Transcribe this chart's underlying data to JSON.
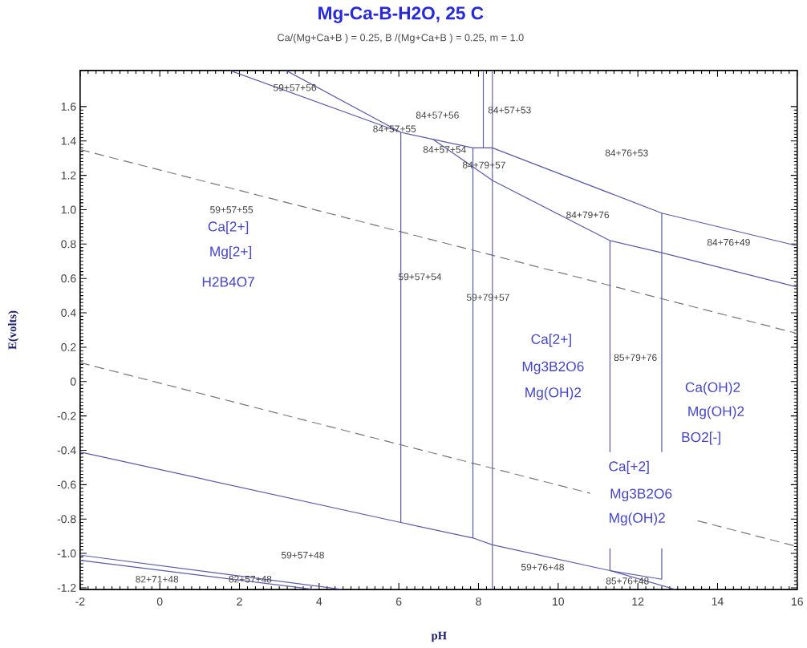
{
  "chart_data": {
    "type": "line",
    "title": "Mg-Ca-B-H2O, 25 C",
    "subtitle": "Ca/(Mg+Ca+B ) = 0.25,  B /(Mg+Ca+B ) = 0.25, m = 1.0",
    "xlabel": "pH",
    "ylabel": "E(volts)",
    "xlim": [
      -2,
      16
    ],
    "ylim": [
      -1.21,
      1.81
    ],
    "xticks": [
      -2,
      0,
      2,
      4,
      6,
      8,
      10,
      12,
      14,
      16
    ],
    "yticks": [
      {
        "value": -1.2,
        "label": "-1.2"
      },
      {
        "value": -1,
        "label": "-1.0"
      },
      -0.8,
      -0.6,
      -0.4,
      -0.2,
      0,
      0.2,
      0.4,
      0.6,
      0.8,
      {
        "value": 1,
        "label": "1.0"
      },
      1.2,
      1.4,
      1.6
    ],
    "grid": false,
    "marker": "none",
    "series": [
      {
        "color": "#777777",
        "line_style": "dashed",
        "x": [
          -2,
          16
        ],
        "values": [
          1.35,
          0.28
        ]
      },
      {
        "color": "#777777",
        "line_style": "dashed",
        "x": [
          -2,
          10.8
        ],
        "values": [
          0.11,
          -0.65
        ]
      },
      {
        "color": "#777777",
        "line_style": "dashed",
        "x": [
          13.5,
          16
        ],
        "values": [
          -0.81,
          -0.96
        ]
      },
      {
        "color": "#5a5aa8",
        "line_style": "solid",
        "x": [
          -2,
          6.05,
          7.86,
          8.35,
          11.3,
          12.95
        ],
        "values": [
          -0.41,
          -0.82,
          -0.91,
          -0.95,
          -1.1,
          -1.21
        ]
      },
      {
        "color": "#5a5aa8",
        "line_style": "solid",
        "x": [
          -2,
          4.6
        ],
        "values": [
          -1.01,
          -1.21
        ]
      },
      {
        "color": "#5a5aa8",
        "line_style": "solid",
        "x": [
          -2,
          3.9
        ],
        "values": [
          -1.04,
          -1.21
        ]
      },
      {
        "color": "#5a5aa8",
        "line_style": "solid",
        "x": [
          1.76,
          6.05,
          6.85,
          7.86,
          8.35,
          12.6,
          16
        ],
        "values": [
          1.81,
          1.45,
          1.41,
          1.36,
          1.36,
          0.98,
          0.79
        ]
      },
      {
        "color": "#5a5aa8",
        "line_style": "solid",
        "x": [
          3.17,
          6.05,
          6.05
        ],
        "values": [
          1.81,
          1.45,
          -0.82
        ]
      },
      {
        "color": "#5a5aa8",
        "line_style": "solid",
        "x": [
          6.85,
          7.86,
          8.35,
          11.3,
          12.6,
          16
        ],
        "values": [
          1.41,
          1.25,
          1.17,
          0.82,
          0.75,
          0.55
        ]
      },
      {
        "color": "#5a5aa8",
        "line_style": "solid",
        "x": [
          7.86,
          7.86
        ],
        "values": [
          1.36,
          -0.91
        ]
      },
      {
        "color": "#5a5aa8",
        "line_style": "solid",
        "x": [
          8.12,
          8.12
        ],
        "values": [
          1.81,
          1.36
        ]
      },
      {
        "color": "#5a5aa8",
        "line_style": "solid",
        "x": [
          8.35,
          8.35
        ],
        "values": [
          1.81,
          -1.21
        ]
      },
      {
        "color": "#5a5aa8",
        "line_style": "solid",
        "x": [
          11.3,
          11.3
        ],
        "values": [
          0.82,
          -0.41
        ]
      },
      {
        "color": "#5a5aa8",
        "line_style": "solid",
        "x": [
          11.3,
          11.3
        ],
        "values": [
          -0.97,
          -1.1
        ]
      },
      {
        "color": "#5a5aa8",
        "line_style": "solid",
        "x": [
          12.6,
          12.6
        ],
        "values": [
          0.98,
          -0.41
        ]
      },
      {
        "color": "#5a5aa8",
        "line_style": "solid",
        "x": [
          12.6,
          12.6
        ],
        "values": [
          -0.97,
          -1.15
        ]
      },
      {
        "color": "#5a5aa8",
        "line_style": "solid",
        "x": [
          11.3,
          12.6
        ],
        "values": [
          -1.1,
          -1.15
        ]
      }
    ],
    "annotations": [
      "59+57+56",
      "84+57+56",
      "84+57+53",
      "84+57+55",
      "84+57+54",
      "84+79+57",
      "84+76+53",
      "59+57+55",
      "84+79+76",
      "84+76+49",
      "59+57+54",
      "59+79+57",
      "85+79+76",
      "59+57+48",
      "59+76+48",
      "82+71+48",
      "82+57+48",
      "85+76+48",
      "Ca[2+]",
      "Mg[2+]",
      "H2B4O7",
      "Ca[2+]",
      "Mg3B2O6",
      "Mg(OH)2",
      "Ca(OH)2",
      "Mg(OH)2",
      "BO2[-]",
      "Ca[+2]",
      "Mg3B2O6",
      "Mg(OH)2"
    ]
  }
}
